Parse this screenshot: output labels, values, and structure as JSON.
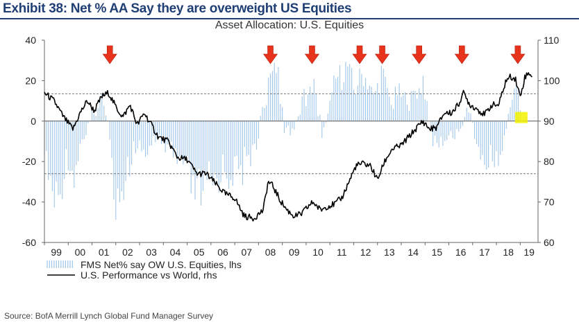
{
  "exhibit_title": "Exhibit 38: Net % AA Say they are overweight US Equities",
  "source": "Source: BofA Merrill Lynch Global Fund Manager Survey",
  "colors": {
    "title": "#1f3e74",
    "bars": "#9fc5e8",
    "line": "#000000",
    "arrow": "#e8331c",
    "highlight": "#f2f200",
    "dashed": "#777777"
  },
  "chart_data": {
    "type": "bar+line",
    "title": "Asset Allocation: U.S. Equities",
    "x_ticks": [
      "99",
      "00",
      "01",
      "02",
      "03",
      "04",
      "05",
      "06",
      "07",
      "08",
      "09",
      "10",
      "11",
      "12",
      "13",
      "14",
      "15",
      "16",
      "17",
      "18",
      "19"
    ],
    "x_range": [
      1999,
      2019.75
    ],
    "y_left": {
      "min": -60,
      "max": 40,
      "ticks": [
        "40",
        "20",
        "0",
        "-20",
        "-40",
        "-60"
      ]
    },
    "y_right": {
      "min": 60,
      "max": 110,
      "ticks": [
        "110",
        "100",
        "90",
        "80",
        "70",
        "60"
      ]
    },
    "reference_lines_lhs": [
      13.5,
      -26
    ],
    "highlight_year": 2018.9,
    "arrow_years": [
      2001.75,
      2008.5,
      2010.25,
      2012.25,
      2013.2,
      2014.75,
      2016.55,
      2018.9
    ],
    "bar_keypoints": [
      [
        1999.0,
        -15
      ],
      [
        1999.3,
        -40
      ],
      [
        1999.6,
        -45
      ],
      [
        1999.9,
        -20
      ],
      [
        2000.3,
        -30
      ],
      [
        2000.6,
        -10
      ],
      [
        2001.0,
        5
      ],
      [
        2001.4,
        13
      ],
      [
        2001.7,
        -5
      ],
      [
        2002.0,
        -40
      ],
      [
        2002.4,
        -35
      ],
      [
        2002.8,
        -15
      ],
      [
        2003.2,
        -20
      ],
      [
        2003.6,
        -10
      ],
      [
        2004.0,
        -15
      ],
      [
        2004.5,
        -22
      ],
      [
        2005.0,
        -30
      ],
      [
        2005.5,
        -45
      ],
      [
        2006.0,
        -35
      ],
      [
        2006.5,
        -28
      ],
      [
        2007.0,
        -30
      ],
      [
        2007.5,
        -25
      ],
      [
        2007.9,
        -12
      ],
      [
        2008.2,
        8
      ],
      [
        2008.5,
        30
      ],
      [
        2008.8,
        25
      ],
      [
        2009.1,
        -5
      ],
      [
        2009.5,
        -5
      ],
      [
        2009.9,
        12
      ],
      [
        2010.3,
        20
      ],
      [
        2010.7,
        -8
      ],
      [
        2011.0,
        10
      ],
      [
        2011.3,
        25
      ],
      [
        2011.7,
        30
      ],
      [
        2012.0,
        18
      ],
      [
        2012.4,
        28
      ],
      [
        2012.8,
        15
      ],
      [
        2013.2,
        25
      ],
      [
        2013.6,
        10
      ],
      [
        2014.0,
        15
      ],
      [
        2014.5,
        12
      ],
      [
        2014.9,
        25
      ],
      [
        2015.3,
        -10
      ],
      [
        2015.7,
        -15
      ],
      [
        2016.0,
        -5
      ],
      [
        2016.4,
        -8
      ],
      [
        2016.8,
        8
      ],
      [
        2017.2,
        -15
      ],
      [
        2017.6,
        -26
      ],
      [
        2018.0,
        -20
      ],
      [
        2018.3,
        -15
      ],
      [
        2018.6,
        12
      ],
      [
        2018.9,
        20
      ],
      [
        2019.1,
        -5
      ],
      [
        2019.3,
        2
      ]
    ],
    "line_keypoints": [
      [
        1999.0,
        97
      ],
      [
        1999.4,
        95
      ],
      [
        1999.8,
        91
      ],
      [
        2000.2,
        88
      ],
      [
        2000.5,
        92
      ],
      [
        2000.8,
        95
      ],
      [
        2001.1,
        92.5
      ],
      [
        2001.4,
        96
      ],
      [
        2001.7,
        97
      ],
      [
        2002.0,
        93.5
      ],
      [
        2002.3,
        91
      ],
      [
        2002.6,
        94
      ],
      [
        2002.9,
        89
      ],
      [
        2003.2,
        92
      ],
      [
        2003.5,
        89
      ],
      [
        2003.8,
        86
      ],
      [
        2004.2,
        85
      ],
      [
        2004.6,
        81
      ],
      [
        2005.0,
        80.5
      ],
      [
        2005.4,
        77
      ],
      [
        2005.8,
        77
      ],
      [
        2006.2,
        74.5
      ],
      [
        2006.6,
        72
      ],
      [
        2007.0,
        71
      ],
      [
        2007.4,
        66.5
      ],
      [
        2007.8,
        66
      ],
      [
        2008.2,
        68
      ],
      [
        2008.4,
        75
      ],
      [
        2008.6,
        74
      ],
      [
        2008.9,
        70.5
      ],
      [
        2009.2,
        68
      ],
      [
        2009.5,
        66.5
      ],
      [
        2009.8,
        67
      ],
      [
        2010.1,
        69
      ],
      [
        2010.3,
        70
      ],
      [
        2010.6,
        68
      ],
      [
        2010.9,
        69
      ],
      [
        2011.2,
        69.5
      ],
      [
        2011.5,
        71
      ],
      [
        2011.8,
        75
      ],
      [
        2012.1,
        79
      ],
      [
        2012.4,
        79.5
      ],
      [
        2012.7,
        79
      ],
      [
        2013.0,
        75.5
      ],
      [
        2013.3,
        80
      ],
      [
        2013.6,
        83
      ],
      [
        2014.0,
        84
      ],
      [
        2014.3,
        86
      ],
      [
        2014.6,
        88
      ],
      [
        2014.9,
        90
      ],
      [
        2015.2,
        88
      ],
      [
        2015.5,
        88.5
      ],
      [
        2015.8,
        92
      ],
      [
        2016.1,
        92
      ],
      [
        2016.4,
        94
      ],
      [
        2016.6,
        97
      ],
      [
        2016.9,
        94
      ],
      [
        2017.2,
        93
      ],
      [
        2017.5,
        91.5
      ],
      [
        2017.8,
        94
      ],
      [
        2018.1,
        94
      ],
      [
        2018.4,
        100
      ],
      [
        2018.6,
        101
      ],
      [
        2018.8,
        100.5
      ],
      [
        2019.0,
        96
      ],
      [
        2019.2,
        101
      ],
      [
        2019.4,
        102
      ],
      [
        2019.5,
        101
      ]
    ],
    "legend": [
      {
        "label": "FMS Net% say OW U.S. Equities, lhs",
        "kind": "bars"
      },
      {
        "label": "U.S. Performance vs World, rhs",
        "kind": "line"
      }
    ]
  }
}
